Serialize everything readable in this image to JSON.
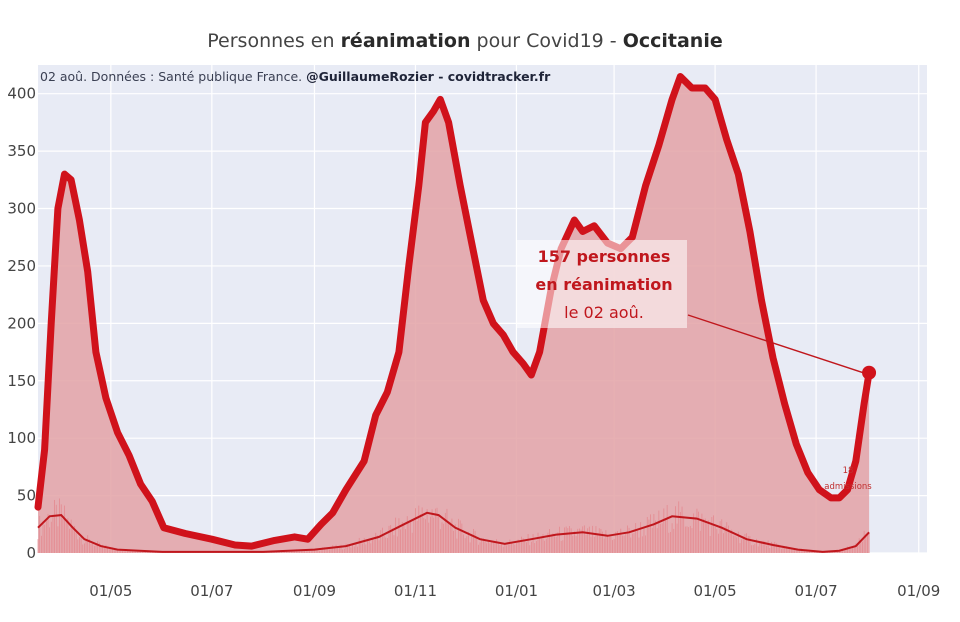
{
  "chart_data": {
    "type": "line",
    "title": {
      "part1": "Personnes en ",
      "part2_bold": "réanimation",
      "part3": " pour Covid19 - ",
      "part4_bold": "Occitanie"
    },
    "subtitle": {
      "part1": "02 aoû. Données : Santé publique France. ",
      "part2_bold": "@GuillaumeRozier - covidtracker.fr"
    },
    "x_domain": [
      "2020-03-18",
      "2021-09-06"
    ],
    "ylim": [
      0,
      425
    ],
    "yticks": [
      0,
      50,
      100,
      150,
      200,
      250,
      300,
      350,
      400
    ],
    "xticks": [
      {
        "date": "2020-05-01",
        "label": "01/05"
      },
      {
        "date": "2020-07-01",
        "label": "01/07"
      },
      {
        "date": "2020-09-01",
        "label": "01/09"
      },
      {
        "date": "2020-11-01",
        "label": "01/11"
      },
      {
        "date": "2021-01-01",
        "label": "01/01"
      },
      {
        "date": "2021-03-01",
        "label": "01/03"
      },
      {
        "date": "2021-05-01",
        "label": "01/05"
      },
      {
        "date": "2021-07-01",
        "label": "01/07"
      },
      {
        "date": "2021-09-01",
        "label": "01/09"
      }
    ],
    "grid": true,
    "colors": {
      "plot_bg": "#e8ebf5",
      "grid": "#ffffff",
      "line": "#d0121b",
      "fill": "#e3a2a6",
      "admissions_bar": "#e58a90",
      "admissions_line": "#c0171d",
      "annotation": "#c0171d"
    },
    "series": [
      {
        "name": "réanimation",
        "points": [
          [
            "2020-03-18",
            40
          ],
          [
            "2020-03-22",
            90
          ],
          [
            "2020-03-26",
            200
          ],
          [
            "2020-03-30",
            300
          ],
          [
            "2020-04-03",
            330
          ],
          [
            "2020-04-07",
            325
          ],
          [
            "2020-04-12",
            290
          ],
          [
            "2020-04-17",
            245
          ],
          [
            "2020-04-22",
            175
          ],
          [
            "2020-04-28",
            135
          ],
          [
            "2020-05-05",
            105
          ],
          [
            "2020-05-12",
            85
          ],
          [
            "2020-05-19",
            60
          ],
          [
            "2020-05-26",
            45
          ],
          [
            "2020-06-02",
            22
          ],
          [
            "2020-06-15",
            17
          ],
          [
            "2020-07-01",
            12
          ],
          [
            "2020-07-15",
            7
          ],
          [
            "2020-07-25",
            6
          ],
          [
            "2020-08-08",
            11
          ],
          [
            "2020-08-20",
            14
          ],
          [
            "2020-08-28",
            12
          ],
          [
            "2020-09-05",
            25
          ],
          [
            "2020-09-12",
            35
          ],
          [
            "2020-09-20",
            55
          ],
          [
            "2020-10-01",
            80
          ],
          [
            "2020-10-08",
            120
          ],
          [
            "2020-10-15",
            140
          ],
          [
            "2020-10-22",
            175
          ],
          [
            "2020-10-28",
            250
          ],
          [
            "2020-11-03",
            320
          ],
          [
            "2020-11-07",
            375
          ],
          [
            "2020-11-12",
            385
          ],
          [
            "2020-11-16",
            395
          ],
          [
            "2020-11-21",
            375
          ],
          [
            "2020-11-28",
            320
          ],
          [
            "2020-12-05",
            270
          ],
          [
            "2020-12-12",
            220
          ],
          [
            "2020-12-18",
            200
          ],
          [
            "2020-12-24",
            190
          ],
          [
            "2020-12-30",
            175
          ],
          [
            "2021-01-05",
            165
          ],
          [
            "2021-01-10",
            155
          ],
          [
            "2021-01-15",
            175
          ],
          [
            "2021-01-22",
            230
          ],
          [
            "2021-01-28",
            265
          ],
          [
            "2021-02-05",
            290
          ],
          [
            "2021-02-10",
            280
          ],
          [
            "2021-02-17",
            285
          ],
          [
            "2021-02-25",
            270
          ],
          [
            "2021-03-05",
            265
          ],
          [
            "2021-03-12",
            275
          ],
          [
            "2021-03-20",
            320
          ],
          [
            "2021-03-28",
            355
          ],
          [
            "2021-04-05",
            395
          ],
          [
            "2021-04-10",
            415
          ],
          [
            "2021-04-17",
            405
          ],
          [
            "2021-04-25",
            405
          ],
          [
            "2021-05-01",
            395
          ],
          [
            "2021-05-08",
            360
          ],
          [
            "2021-05-15",
            330
          ],
          [
            "2021-05-22",
            280
          ],
          [
            "2021-05-29",
            220
          ],
          [
            "2021-06-05",
            170
          ],
          [
            "2021-06-12",
            130
          ],
          [
            "2021-06-19",
            95
          ],
          [
            "2021-06-26",
            70
          ],
          [
            "2021-07-03",
            55
          ],
          [
            "2021-07-10",
            48
          ],
          [
            "2021-07-15",
            48
          ],
          [
            "2021-07-20",
            55
          ],
          [
            "2021-07-25",
            80
          ],
          [
            "2021-07-30",
            130
          ],
          [
            "2021-08-02",
            157
          ]
        ]
      },
      {
        "name": "admissions",
        "points": [
          [
            "2020-03-18",
            22
          ],
          [
            "2020-03-25",
            32
          ],
          [
            "2020-04-01",
            33
          ],
          [
            "2020-04-08",
            22
          ],
          [
            "2020-04-15",
            12
          ],
          [
            "2020-04-25",
            6
          ],
          [
            "2020-05-05",
            3
          ],
          [
            "2020-06-01",
            1
          ],
          [
            "2020-07-01",
            1
          ],
          [
            "2020-08-01",
            1
          ],
          [
            "2020-09-01",
            3
          ],
          [
            "2020-09-20",
            6
          ],
          [
            "2020-10-10",
            14
          ],
          [
            "2020-10-25",
            25
          ],
          [
            "2020-11-08",
            35
          ],
          [
            "2020-11-15",
            33
          ],
          [
            "2020-11-25",
            22
          ],
          [
            "2020-12-10",
            12
          ],
          [
            "2020-12-25",
            8
          ],
          [
            "2021-01-10",
            12
          ],
          [
            "2021-01-25",
            16
          ],
          [
            "2021-02-10",
            18
          ],
          [
            "2021-02-25",
            15
          ],
          [
            "2021-03-10",
            18
          ],
          [
            "2021-03-25",
            25
          ],
          [
            "2021-04-05",
            32
          ],
          [
            "2021-04-20",
            30
          ],
          [
            "2021-05-05",
            22
          ],
          [
            "2021-05-20",
            12
          ],
          [
            "2021-06-05",
            7
          ],
          [
            "2021-06-20",
            3
          ],
          [
            "2021-07-05",
            1
          ],
          [
            "2021-07-15",
            2
          ],
          [
            "2021-07-25",
            6
          ],
          [
            "2021-08-02",
            18
          ]
        ]
      }
    ],
    "last_point": {
      "date": "2021-08-02",
      "value": 157
    },
    "annotation": {
      "line1_bold": "157 personnes",
      "line2_bold": "en réanimation",
      "line3": "le 02 aoû."
    },
    "small_annotation": {
      "value": "18",
      "text": "admissions"
    }
  }
}
